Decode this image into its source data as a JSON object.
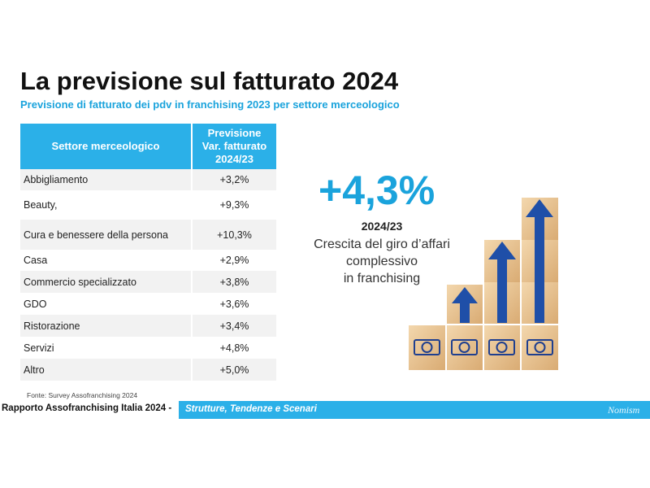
{
  "header": {
    "title": "La previsione sul fatturato 2024",
    "subtitle": "Previsione di fatturato dei pdv in franchising 2023 per settore merceologico"
  },
  "table": {
    "columns": [
      "Settore merceologico",
      [
        "Previsione",
        "Var. fatturato",
        "2024/23"
      ]
    ],
    "rows": [
      [
        "Abbigliamento",
        "+3,2%"
      ],
      [
        "Beauty,",
        "+9,3%"
      ],
      [
        "Cura e benessere della persona",
        "+10,3%"
      ],
      [
        "Casa",
        "+2,9%"
      ],
      [
        "Commercio specializzato",
        "+3,8%"
      ],
      [
        "GDO",
        "+3,6%"
      ],
      [
        "Ristorazione",
        "+3,4%"
      ],
      [
        "Servizi",
        "+4,8%"
      ],
      [
        "Altro",
        "+5,0%"
      ]
    ]
  },
  "highlight": {
    "value": "+4,3%",
    "period": "2024/23",
    "lines": [
      "Crescita del giro d’affari",
      "complessivo",
      "in franchising"
    ]
  },
  "source": "Fonte:  Survey Assofranchising 2024",
  "footer": {
    "left": "Rapporto Assofranchising Italia 2024 -",
    "tagline": "Strutture, Tendenze e Scenari",
    "logo": "Nomism"
  }
}
